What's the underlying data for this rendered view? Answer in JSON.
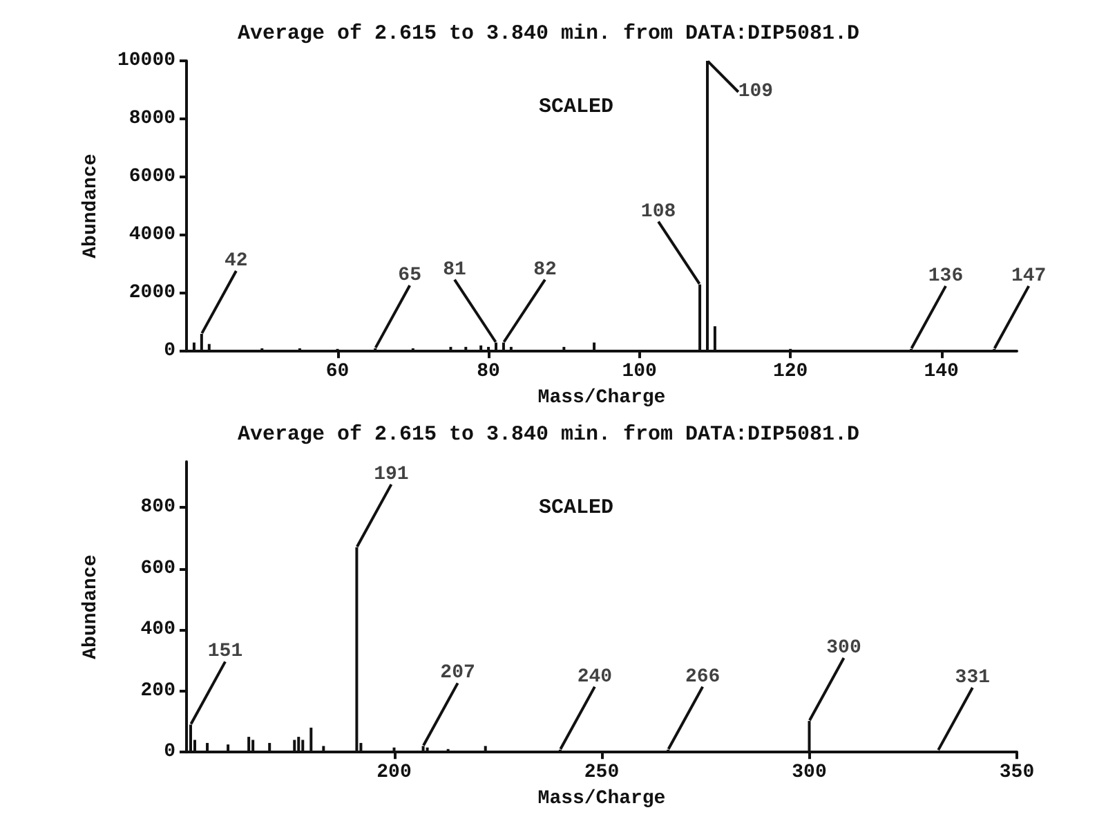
{
  "chart_data": [
    {
      "type": "bar",
      "title": "Average of 2.615 to 3.840 min. from DATA:DIP5081.D",
      "xlabel": "Mass/Charge",
      "ylabel": "Abundance",
      "color": "#111111",
      "x": [
        41,
        42,
        43,
        50,
        55,
        60,
        65,
        70,
        75,
        77,
        79,
        80,
        81,
        82,
        83,
        90,
        94,
        108,
        109,
        110,
        120,
        136,
        147
      ],
      "values": [
        300,
        600,
        250,
        100,
        100,
        80,
        100,
        100,
        150,
        150,
        200,
        150,
        300,
        300,
        150,
        150,
        300,
        2300,
        10000,
        860,
        80,
        80,
        80
      ],
      "xlim": [
        40,
        150
      ],
      "xticks": [
        60,
        80,
        100,
        120,
        140
      ],
      "ylim": [
        0,
        10000
      ],
      "yticks": [
        0,
        2000,
        4000,
        6000,
        8000,
        10000
      ],
      "grid": false,
      "annotations": [
        "SCALED",
        {
          "text": "42",
          "x": 42,
          "y": 600
        },
        {
          "text": "65",
          "x": 65,
          "y": 100
        },
        {
          "text": "81",
          "x": 81,
          "y": 300
        },
        {
          "text": "82",
          "x": 82,
          "y": 300
        },
        {
          "text": "108",
          "x": 108,
          "y": 2300
        },
        {
          "text": "109",
          "x": 109,
          "y": 10000
        },
        {
          "text": "136",
          "x": 136,
          "y": 80
        },
        {
          "text": "147",
          "x": 147,
          "y": 80
        }
      ]
    },
    {
      "type": "bar",
      "title": "Average of 2.615 to 3.840 min. from DATA:DIP5081.D",
      "xlabel": "Mass/Charge",
      "ylabel": "Abundance",
      "color": "#111111",
      "x": [
        151,
        152,
        155,
        160,
        165,
        166,
        170,
        176,
        177,
        178,
        180,
        183,
        191,
        192,
        200,
        207,
        208,
        213,
        222,
        240,
        266,
        300,
        331
      ],
      "values": [
        90,
        40,
        30,
        25,
        50,
        40,
        30,
        40,
        50,
        40,
        80,
        20,
        670,
        30,
        15,
        20,
        15,
        10,
        20,
        8,
        8,
        102,
        5
      ],
      "xlim": [
        150,
        350
      ],
      "xticks": [
        200,
        250,
        300,
        350
      ],
      "ylim": [
        0,
        950
      ],
      "yticks": [
        0,
        200,
        400,
        600,
        800
      ],
      "grid": false,
      "annotations": [
        "SCALED",
        {
          "text": "151",
          "x": 151,
          "y": 90
        },
        {
          "text": "191",
          "x": 191,
          "y": 670
        },
        {
          "text": "207",
          "x": 207,
          "y": 20
        },
        {
          "text": "240",
          "x": 240,
          "y": 8
        },
        {
          "text": "266",
          "x": 266,
          "y": 8
        },
        {
          "text": "300",
          "x": 300,
          "y": 102
        },
        {
          "text": "331",
          "x": 331,
          "y": 5
        }
      ]
    }
  ]
}
